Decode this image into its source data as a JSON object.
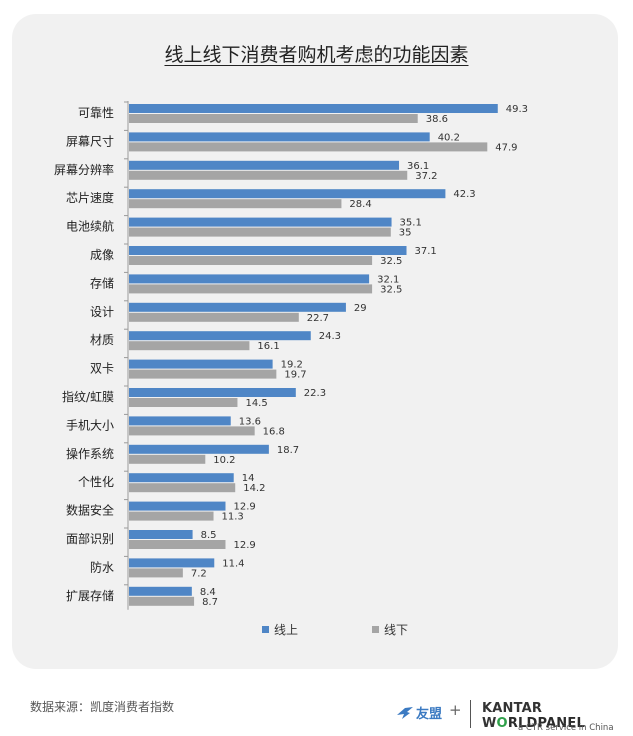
{
  "chart_data": {
    "type": "bar",
    "title": "线上线下消费者购机考虑的功能因素",
    "categories": [
      "可靠性",
      "屏幕尺寸",
      "屏幕分辨率",
      "芯片速度",
      "电池续航",
      "成像",
      "存储",
      "设计",
      "材质",
      "双卡",
      "指纹/虹膜",
      "手机大小",
      "操作系统",
      "个性化",
      "数据安全",
      "面部识别",
      "防水",
      "扩展存储"
    ],
    "series": [
      {
        "name": "线上",
        "color": "#4f86c6",
        "values": [
          49.3,
          40.2,
          36.1,
          42.3,
          35.1,
          37.1,
          32.1,
          29,
          24.3,
          19.2,
          22.3,
          13.6,
          18.7,
          14,
          12.9,
          8.5,
          11.4,
          8.4
        ]
      },
      {
        "name": "线下",
        "color": "#a5a5a5",
        "values": [
          38.6,
          47.9,
          37.2,
          28.4,
          35,
          32.5,
          32.5,
          22.7,
          16.1,
          19.7,
          14.5,
          16.8,
          10.2,
          14.2,
          11.3,
          12.9,
          7.2,
          8.7
        ]
      }
    ],
    "xlim": [
      0,
      50
    ],
    "legend": "bottom",
    "grid": false
  },
  "footer": {
    "source": "数据来源：凯度消费者指数",
    "logo_youmeng": "友盟",
    "logo_plus": "+",
    "kantar_left": "KANTAR W",
    "kantar_o": "O",
    "kantar_right": "RLDPANEL",
    "ctr_line": "a CTR service in China"
  }
}
